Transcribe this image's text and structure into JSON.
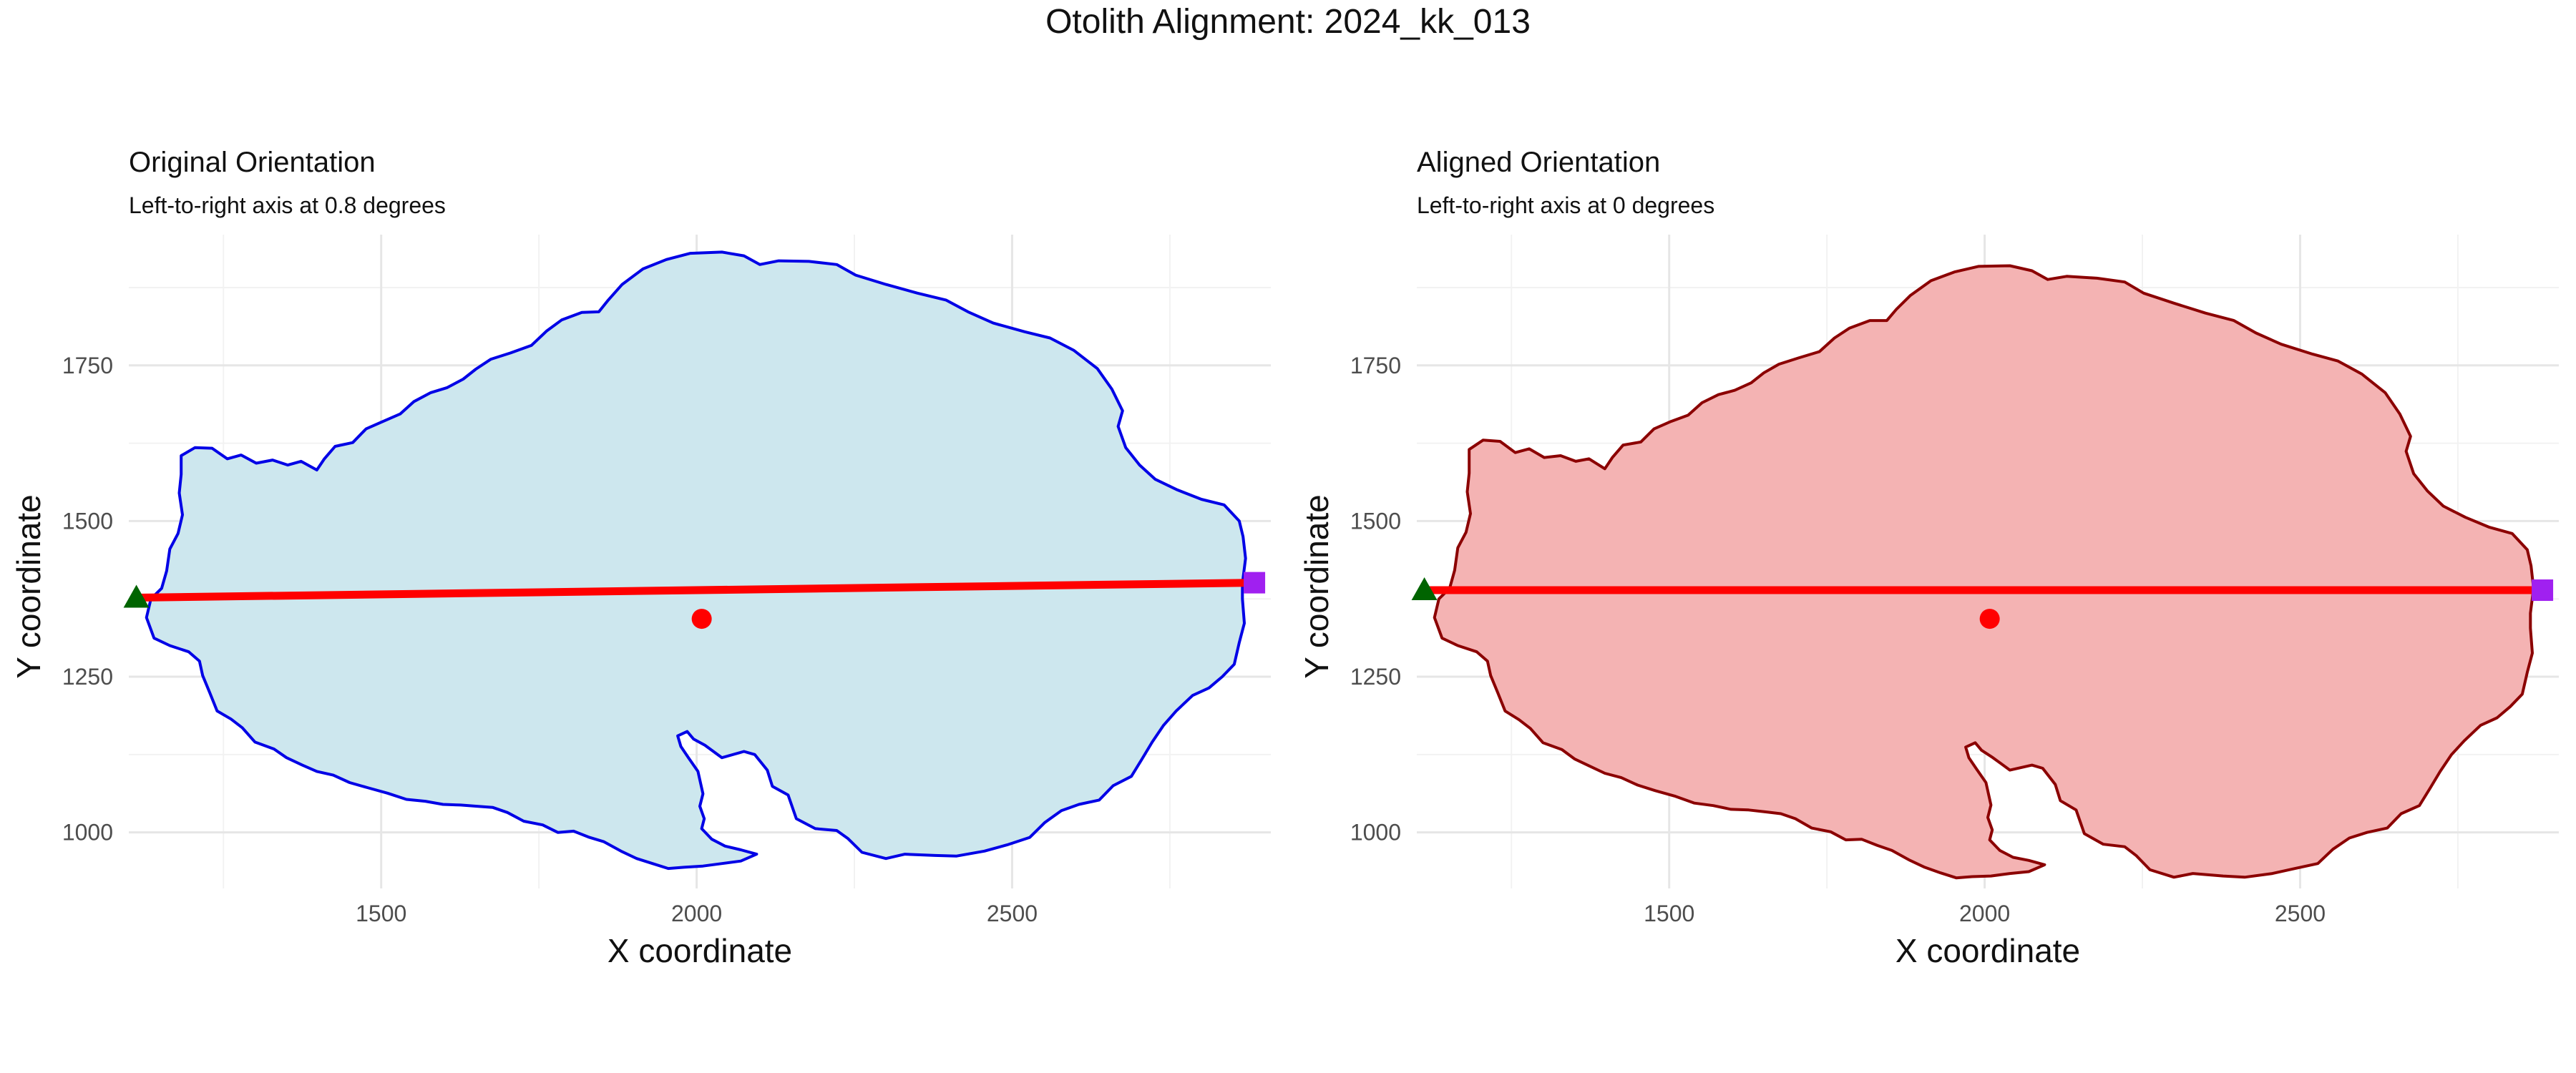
{
  "figure": {
    "title": "Otolith Alignment: 2024_kk_013"
  },
  "colors": {
    "original_fill": "#cde7ee",
    "original_line": "#0000e6",
    "aligned_fill": "#f4b3b3",
    "aligned_line": "#8b0000",
    "axis_line": "#ff0000",
    "centroid": "#ff0000",
    "left_marker": "#006400",
    "right_marker": "#a020f0"
  },
  "chart_data": [
    {
      "type": "scatter",
      "panel": "original",
      "title": "Original Orientation",
      "subtitle": "Left-to-right axis at 0.8 degrees",
      "xlabel": "X coordinate",
      "ylabel": "Y coordinate",
      "xlim": [
        1100,
        2910
      ],
      "ylim": [
        910,
        1960
      ],
      "xticks": [
        1500,
        2000,
        2500
      ],
      "yticks": [
        1000,
        1250,
        1500,
        1750
      ],
      "grid": true,
      "outline": [
        [
          1183,
          1605
        ],
        [
          1205,
          1618
        ],
        [
          1232,
          1617
        ],
        [
          1256,
          1600
        ],
        [
          1278,
          1606
        ],
        [
          1302,
          1593
        ],
        [
          1328,
          1598
        ],
        [
          1352,
          1590
        ],
        [
          1373,
          1596
        ],
        [
          1398,
          1582
        ],
        [
          1410,
          1600
        ],
        [
          1427,
          1620
        ],
        [
          1455,
          1626
        ],
        [
          1476,
          1648
        ],
        [
          1503,
          1660
        ],
        [
          1530,
          1672
        ],
        [
          1552,
          1692
        ],
        [
          1578,
          1706
        ],
        [
          1604,
          1714
        ],
        [
          1630,
          1728
        ],
        [
          1650,
          1744
        ],
        [
          1674,
          1760
        ],
        [
          1705,
          1770
        ],
        [
          1738,
          1782
        ],
        [
          1762,
          1805
        ],
        [
          1786,
          1823
        ],
        [
          1818,
          1835
        ],
        [
          1845,
          1836
        ],
        [
          1860,
          1855
        ],
        [
          1882,
          1880
        ],
        [
          1915,
          1905
        ],
        [
          1952,
          1920
        ],
        [
          1990,
          1930
        ],
        [
          2040,
          1932
        ],
        [
          2075,
          1926
        ],
        [
          2100,
          1912
        ],
        [
          2130,
          1918
        ],
        [
          2178,
          1917
        ],
        [
          2222,
          1912
        ],
        [
          2252,
          1895
        ],
        [
          2300,
          1880
        ],
        [
          2350,
          1866
        ],
        [
          2395,
          1855
        ],
        [
          2430,
          1836
        ],
        [
          2470,
          1818
        ],
        [
          2520,
          1804
        ],
        [
          2560,
          1794
        ],
        [
          2598,
          1774
        ],
        [
          2635,
          1745
        ],
        [
          2658,
          1712
        ],
        [
          2675,
          1677
        ],
        [
          2668,
          1652
        ],
        [
          2680,
          1618
        ],
        [
          2702,
          1590
        ],
        [
          2727,
          1567
        ],
        [
          2762,
          1550
        ],
        [
          2800,
          1535
        ],
        [
          2836,
          1526
        ],
        [
          2860,
          1500
        ],
        [
          2866,
          1475
        ],
        [
          2870,
          1440
        ],
        [
          2865,
          1400
        ],
        [
          2865,
          1375
        ],
        [
          2868,
          1336
        ],
        [
          2860,
          1305
        ],
        [
          2852,
          1270
        ],
        [
          2833,
          1250
        ],
        [
          2812,
          1232
        ],
        [
          2786,
          1220
        ],
        [
          2760,
          1195
        ],
        [
          2740,
          1172
        ],
        [
          2722,
          1145
        ],
        [
          2706,
          1118
        ],
        [
          2689,
          1090
        ],
        [
          2660,
          1075
        ],
        [
          2638,
          1052
        ],
        [
          2606,
          1045
        ],
        [
          2578,
          1035
        ],
        [
          2552,
          1016
        ],
        [
          2528,
          992
        ],
        [
          2492,
          980
        ],
        [
          2456,
          970
        ],
        [
          2412,
          962
        ],
        [
          2378,
          963
        ],
        [
          2330,
          965
        ],
        [
          2300,
          958
        ],
        [
          2262,
          968
        ],
        [
          2240,
          990
        ],
        [
          2222,
          1003
        ],
        [
          2188,
          1006
        ],
        [
          2158,
          1022
        ],
        [
          2145,
          1060
        ],
        [
          2120,
          1074
        ],
        [
          2112,
          1100
        ],
        [
          2092,
          1125
        ],
        [
          2075,
          1130
        ],
        [
          2040,
          1120
        ],
        [
          2013,
          1140
        ],
        [
          1995,
          1150
        ],
        [
          1985,
          1162
        ],
        [
          1970,
          1155
        ],
        [
          1975,
          1138
        ],
        [
          1987,
          1120
        ],
        [
          2002,
          1098
        ],
        [
          2010,
          1062
        ],
        [
          2005,
          1042
        ],
        [
          2012,
          1022
        ],
        [
          2008,
          1006
        ],
        [
          2024,
          989
        ],
        [
          2045,
          978
        ],
        [
          2070,
          972
        ],
        [
          2095,
          965
        ],
        [
          2070,
          954
        ],
        [
          2040,
          950
        ],
        [
          2010,
          946
        ],
        [
          1980,
          944
        ],
        [
          1955,
          942
        ],
        [
          1930,
          950
        ],
        [
          1905,
          958
        ],
        [
          1880,
          970
        ],
        [
          1853,
          985
        ],
        [
          1830,
          992
        ],
        [
          1805,
          1002
        ],
        [
          1780,
          1000
        ],
        [
          1756,
          1012
        ],
        [
          1726,
          1018
        ],
        [
          1700,
          1032
        ],
        [
          1677,
          1040
        ],
        [
          1652,
          1042
        ],
        [
          1626,
          1044
        ],
        [
          1598,
          1045
        ],
        [
          1570,
          1050
        ],
        [
          1540,
          1053
        ],
        [
          1510,
          1063
        ],
        [
          1478,
          1072
        ],
        [
          1450,
          1080
        ],
        [
          1424,
          1092
        ],
        [
          1398,
          1098
        ],
        [
          1375,
          1108
        ],
        [
          1350,
          1120
        ],
        [
          1330,
          1134
        ],
        [
          1300,
          1145
        ],
        [
          1280,
          1168
        ],
        [
          1262,
          1182
        ],
        [
          1240,
          1195
        ],
        [
          1228,
          1225
        ],
        [
          1217,
          1252
        ],
        [
          1212,
          1275
        ],
        [
          1195,
          1290
        ],
        [
          1165,
          1300
        ],
        [
          1140,
          1312
        ],
        [
          1128,
          1345
        ],
        [
          1135,
          1375
        ],
        [
          1152,
          1392
        ],
        [
          1160,
          1420
        ],
        [
          1165,
          1455
        ],
        [
          1178,
          1480
        ],
        [
          1185,
          1510
        ],
        [
          1180,
          1545
        ],
        [
          1183,
          1575
        ],
        [
          1183,
          1605
        ]
      ],
      "axis_line": {
        "from": [
          1112,
          1377
        ],
        "to": [
          2884,
          1401
        ]
      },
      "left_endpoint": [
        1112,
        1377
      ],
      "right_endpoint": [
        2884,
        1401
      ],
      "centroid": [
        2008,
        1343
      ]
    },
    {
      "type": "scatter",
      "panel": "aligned",
      "title": "Aligned Orientation",
      "subtitle": "Left-to-right axis at 0 degrees",
      "xlabel": "X coordinate",
      "ylabel": "Y coordinate",
      "xlim": [
        1100,
        2910
      ],
      "ylim": [
        910,
        1960
      ],
      "xticks": [
        1500,
        2000,
        2500
      ],
      "yticks": [
        1000,
        1250,
        1500,
        1750
      ],
      "grid": true,
      "outline": [
        [
          1183,
          1615
        ],
        [
          1205,
          1630
        ],
        [
          1232,
          1628
        ],
        [
          1256,
          1610
        ],
        [
          1278,
          1616
        ],
        [
          1302,
          1602
        ],
        [
          1328,
          1605
        ],
        [
          1352,
          1596
        ],
        [
          1373,
          1600
        ],
        [
          1398,
          1584
        ],
        [
          1410,
          1602
        ],
        [
          1427,
          1622
        ],
        [
          1455,
          1627
        ],
        [
          1476,
          1648
        ],
        [
          1503,
          1660
        ],
        [
          1530,
          1670
        ],
        [
          1552,
          1690
        ],
        [
          1578,
          1703
        ],
        [
          1604,
          1710
        ],
        [
          1630,
          1722
        ],
        [
          1650,
          1738
        ],
        [
          1674,
          1752
        ],
        [
          1705,
          1762
        ],
        [
          1738,
          1772
        ],
        [
          1762,
          1794
        ],
        [
          1786,
          1810
        ],
        [
          1818,
          1822
        ],
        [
          1845,
          1822
        ],
        [
          1860,
          1840
        ],
        [
          1882,
          1862
        ],
        [
          1915,
          1886
        ],
        [
          1952,
          1900
        ],
        [
          1990,
          1909
        ],
        [
          2040,
          1910
        ],
        [
          2075,
          1902
        ],
        [
          2100,
          1888
        ],
        [
          2130,
          1893
        ],
        [
          2178,
          1890
        ],
        [
          2222,
          1884
        ],
        [
          2252,
          1866
        ],
        [
          2300,
          1850
        ],
        [
          2350,
          1834
        ],
        [
          2395,
          1822
        ],
        [
          2430,
          1802
        ],
        [
          2470,
          1784
        ],
        [
          2520,
          1768
        ],
        [
          2560,
          1757
        ],
        [
          2598,
          1736
        ],
        [
          2635,
          1706
        ],
        [
          2658,
          1672
        ],
        [
          2675,
          1636
        ],
        [
          2668,
          1612
        ],
        [
          2680,
          1576
        ],
        [
          2702,
          1548
        ],
        [
          2727,
          1524
        ],
        [
          2762,
          1506
        ],
        [
          2800,
          1490
        ],
        [
          2836,
          1480
        ],
        [
          2860,
          1454
        ],
        [
          2866,
          1428
        ],
        [
          2870,
          1392
        ],
        [
          2865,
          1352
        ],
        [
          2865,
          1328
        ],
        [
          2868,
          1288
        ],
        [
          2860,
          1257
        ],
        [
          2852,
          1222
        ],
        [
          2833,
          1202
        ],
        [
          2812,
          1184
        ],
        [
          2786,
          1172
        ],
        [
          2760,
          1147
        ],
        [
          2740,
          1125
        ],
        [
          2722,
          1098
        ],
        [
          2706,
          1071
        ],
        [
          2689,
          1043
        ],
        [
          2660,
          1030
        ],
        [
          2638,
          1007
        ],
        [
          2606,
          1000
        ],
        [
          2578,
          991
        ],
        [
          2552,
          973
        ],
        [
          2528,
          950
        ],
        [
          2492,
          942
        ],
        [
          2456,
          934
        ],
        [
          2412,
          928
        ],
        [
          2378,
          930
        ],
        [
          2330,
          934
        ],
        [
          2300,
          928
        ],
        [
          2262,
          940
        ],
        [
          2240,
          963
        ],
        [
          2222,
          977
        ],
        [
          2188,
          981
        ],
        [
          2158,
          998
        ],
        [
          2145,
          1036
        ],
        [
          2120,
          1051
        ],
        [
          2112,
          1077
        ],
        [
          2092,
          1103
        ],
        [
          2075,
          1108
        ],
        [
          2040,
          1100
        ],
        [
          2013,
          1120
        ],
        [
          1995,
          1132
        ],
        [
          1985,
          1144
        ],
        [
          1970,
          1137
        ],
        [
          1975,
          1120
        ],
        [
          1987,
          1102
        ],
        [
          2002,
          1080
        ],
        [
          2010,
          1044
        ],
        [
          2005,
          1024
        ],
        [
          2012,
          1004
        ],
        [
          2008,
          988
        ],
        [
          2024,
          971
        ],
        [
          2045,
          960
        ],
        [
          2070,
          955
        ],
        [
          2095,
          948
        ],
        [
          2070,
          937
        ],
        [
          2040,
          934
        ],
        [
          2010,
          930
        ],
        [
          1980,
          929
        ],
        [
          1955,
          927
        ],
        [
          1930,
          935
        ],
        [
          1905,
          944
        ],
        [
          1880,
          956
        ],
        [
          1853,
          971
        ],
        [
          1830,
          979
        ],
        [
          1805,
          989
        ],
        [
          1780,
          988
        ],
        [
          1756,
          1001
        ],
        [
          1726,
          1007
        ],
        [
          1700,
          1022
        ],
        [
          1677,
          1030
        ],
        [
          1652,
          1033
        ],
        [
          1626,
          1036
        ],
        [
          1598,
          1037
        ],
        [
          1570,
          1043
        ],
        [
          1540,
          1047
        ],
        [
          1510,
          1058
        ],
        [
          1478,
          1067
        ],
        [
          1450,
          1076
        ],
        [
          1424,
          1088
        ],
        [
          1398,
          1095
        ],
        [
          1375,
          1106
        ],
        [
          1350,
          1118
        ],
        [
          1330,
          1133
        ],
        [
          1300,
          1144
        ],
        [
          1280,
          1167
        ],
        [
          1262,
          1181
        ],
        [
          1240,
          1195
        ],
        [
          1228,
          1225
        ],
        [
          1217,
          1252
        ],
        [
          1212,
          1275
        ],
        [
          1195,
          1290
        ],
        [
          1165,
          1300
        ],
        [
          1140,
          1312
        ],
        [
          1128,
          1345
        ],
        [
          1135,
          1375
        ],
        [
          1152,
          1392
        ],
        [
          1160,
          1421
        ],
        [
          1165,
          1457
        ],
        [
          1178,
          1482
        ],
        [
          1185,
          1512
        ],
        [
          1180,
          1547
        ],
        [
          1183,
          1577
        ],
        [
          1183,
          1615
        ]
      ],
      "axis_line": {
        "from": [
          1112,
          1389
        ],
        "to": [
          2884,
          1389
        ]
      },
      "left_endpoint": [
        1112,
        1389
      ],
      "right_endpoint": [
        2884,
        1389
      ],
      "centroid": [
        2008,
        1343
      ]
    }
  ]
}
